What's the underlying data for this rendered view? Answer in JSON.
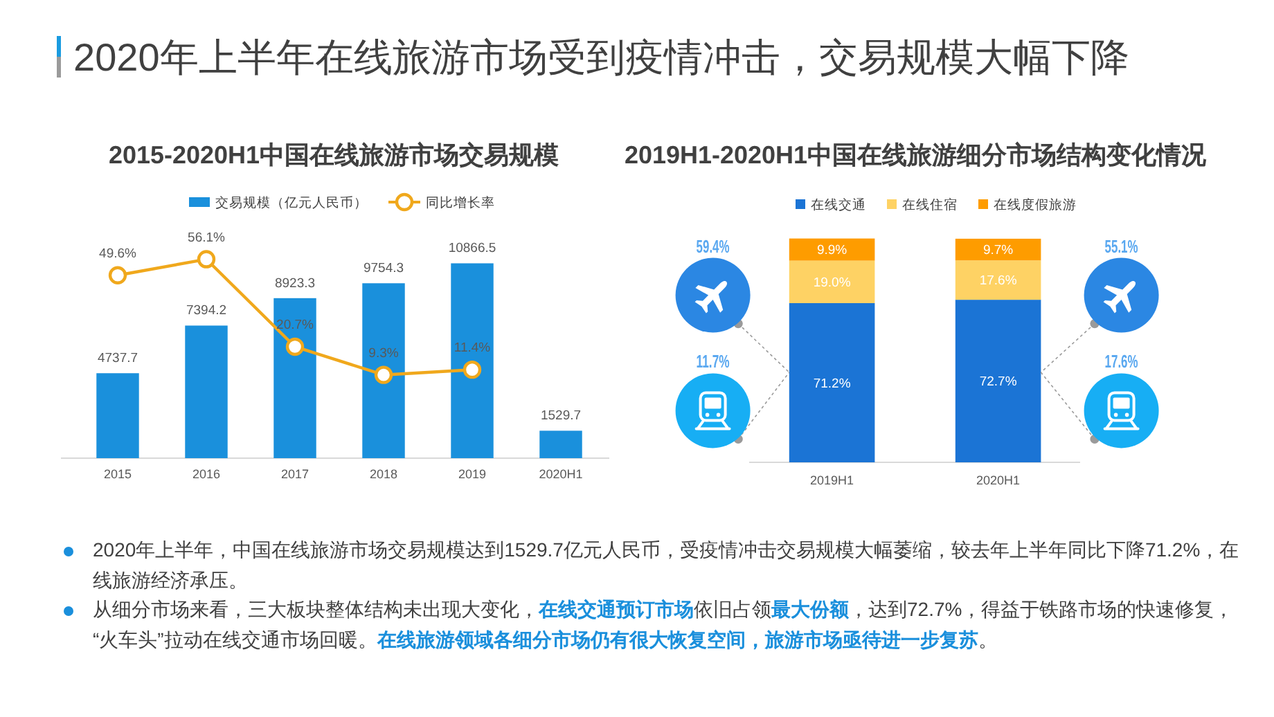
{
  "chart_data": [
    {
      "type": "other",
      "title": "2020年上半年在线旅游市场受到疫情冲击，交易规模大幅下降"
    },
    {
      "type": "bar",
      "title": "2015-2020H1中国在线旅游市场交易规模",
      "categories": [
        "2015",
        "2016",
        "2017",
        "2018",
        "2019",
        "2020H1"
      ],
      "series": [
        {
          "name": "交易规模（亿元人民币）",
          "color": "#1a90dc",
          "values": [
            4737.7,
            7394.2,
            8923.3,
            9754.3,
            10866.5,
            1529.7
          ],
          "value_labels": [
            "4737.7",
            "7394.2",
            "8923.3",
            "9754.3",
            "10866.5",
            "1529.7"
          ]
        },
        {
          "name": "同比增长率",
          "type": "line",
          "axis": "y2",
          "marker": "circle",
          "color": "#f0a81c",
          "values": [
            49.6,
            56.1,
            20.7,
            9.3,
            11.4,
            null
          ],
          "value_labels": [
            "49.6%",
            "56.1%",
            "20.7%",
            "9.3%",
            "11.4%",
            null
          ]
        }
      ],
      "legend": "top",
      "tick_labels": "x"
    },
    {
      "type": "bar",
      "title": "2019H1-2020H1中国在线旅游细分市场结构变化情况",
      "categories": [
        "2019H1",
        "2020H1"
      ],
      "stacked": true,
      "series": [
        {
          "name": "在线交通",
          "color": "#1b74d5",
          "values": [
            71.2,
            72.7
          ],
          "value_labels": [
            "71.2%",
            "72.7%"
          ]
        },
        {
          "name": "在线住宿",
          "color": "#fed264",
          "values": [
            19.0,
            17.6
          ],
          "value_labels": [
            "19.0%",
            "17.6%"
          ]
        },
        {
          "name": "在线度假旅游",
          "color": "#fe9c00",
          "values": [
            9.9,
            9.7
          ],
          "value_labels": [
            "9.9%",
            "9.7%"
          ]
        }
      ],
      "legend": "top",
      "tick_labels": "x",
      "annotations": [
        "59.4%",
        "11.7%",
        "55.1%",
        "17.6%"
      ]
    },
    {
      "type": "other",
      "annotations": [
        "2020年上半年，中国在线旅游市场交易规模达到1529.7亿元人民币，受疫情冲击交易规模大幅萎缩，较去年上半年同比下降71.2%，在线旅游经济承压。",
        "从细分市场来看，三大板块整体结构未出现大变化，**在线交通预订市场**依旧占领**最大份额**，达到72.7%，得益于铁路市场的快速修复，“火车头”拉动在线交通市场回暖。**在线旅游领域各细分市场仍有很大恢复空间，旅游市场亟待进一步复苏**。"
      ]
    }
  ]
}
